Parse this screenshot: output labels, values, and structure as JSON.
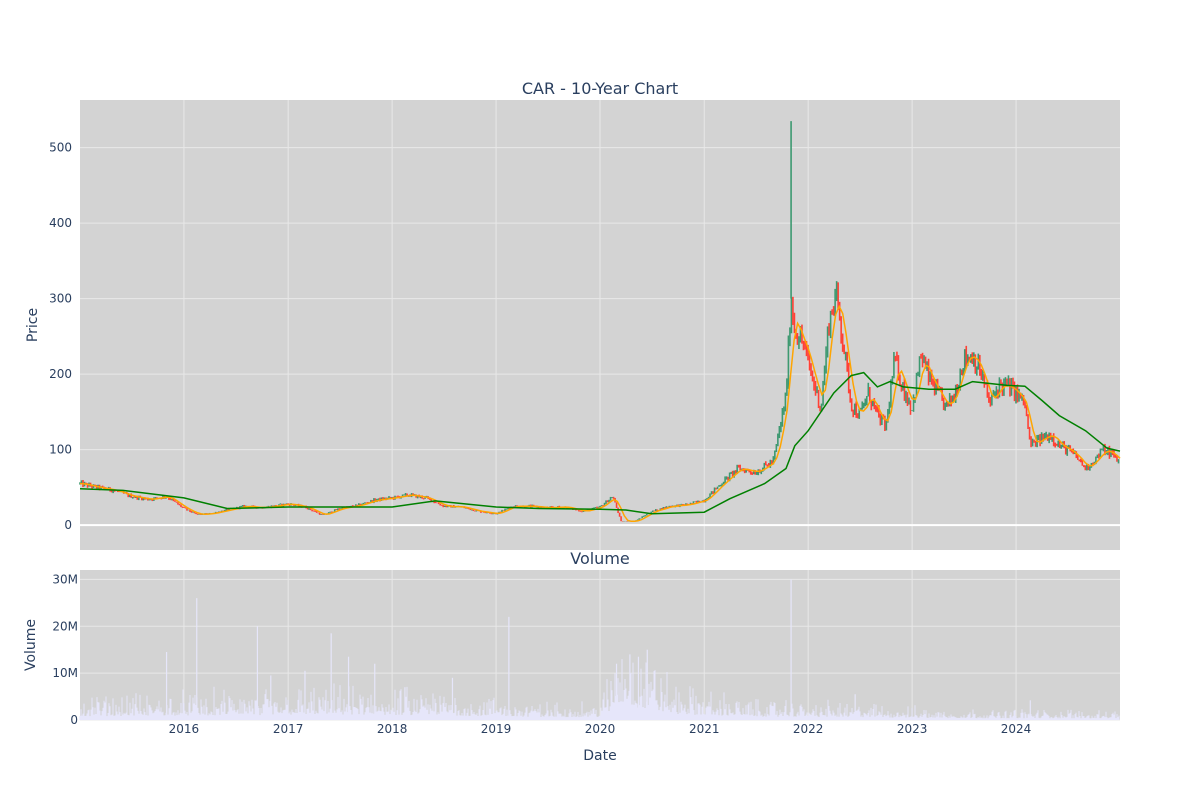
{
  "chart_data": [
    {
      "type": "candlestick",
      "title": "CAR - 10-Year Chart",
      "xlabel": "",
      "ylabel": "Price",
      "x_range": [
        "2015-01-01",
        "2024-12-31"
      ],
      "ylim": [
        -33,
        563
      ],
      "y_ticks": [
        0,
        100,
        200,
        300,
        400,
        500
      ],
      "x_ticks": [
        "2016-01-01",
        "2017-01-01",
        "2018-01-01",
        "2019-01-01",
        "2020-01-01",
        "2021-01-01",
        "2022-01-01",
        "2023-01-01",
        "2024-01-01"
      ],
      "x_tick_labels": [
        "2016",
        "2017",
        "2018",
        "2019",
        "2020",
        "2021",
        "2022",
        "2023",
        "2024"
      ],
      "grid": true,
      "background": "#d3d3d3",
      "increasing_color": "#3d9970",
      "decreasing_color": "#ff4136",
      "close_approx": [
        [
          "2015-01-01",
          55
        ],
        [
          "2015-03-01",
          50
        ],
        [
          "2015-05-01",
          46
        ],
        [
          "2015-07-01",
          38
        ],
        [
          "2015-09-01",
          34
        ],
        [
          "2015-11-01",
          38
        ],
        [
          "2016-01-01",
          22
        ],
        [
          "2016-02-15",
          14
        ],
        [
          "2016-04-01",
          15
        ],
        [
          "2016-06-01",
          20
        ],
        [
          "2016-08-01",
          25
        ],
        [
          "2016-10-01",
          23
        ],
        [
          "2017-01-01",
          28
        ],
        [
          "2017-03-01",
          24
        ],
        [
          "2017-05-01",
          13
        ],
        [
          "2017-07-01",
          22
        ],
        [
          "2017-09-01",
          26
        ],
        [
          "2017-11-01",
          33
        ],
        [
          "2018-01-01",
          36
        ],
        [
          "2018-03-01",
          40
        ],
        [
          "2018-05-01",
          36
        ],
        [
          "2018-07-01",
          25
        ],
        [
          "2018-09-01",
          24
        ],
        [
          "2018-11-01",
          18
        ],
        [
          "2019-01-01",
          15
        ],
        [
          "2019-03-01",
          25
        ],
        [
          "2019-05-01",
          25
        ],
        [
          "2019-07-01",
          23
        ],
        [
          "2019-09-01",
          24
        ],
        [
          "2019-11-01",
          18
        ],
        [
          "2020-01-01",
          24
        ],
        [
          "2020-02-15",
          38
        ],
        [
          "2020-03-15",
          5
        ],
        [
          "2020-05-01",
          5
        ],
        [
          "2020-07-01",
          18
        ],
        [
          "2020-09-01",
          25
        ],
        [
          "2020-11-01",
          27
        ],
        [
          "2021-01-01",
          33
        ],
        [
          "2021-03-01",
          55
        ],
        [
          "2021-05-01",
          75
        ],
        [
          "2021-07-01",
          70
        ],
        [
          "2021-09-01",
          85
        ],
        [
          "2021-10-15",
          170
        ],
        [
          "2021-11-02",
          300
        ],
        [
          "2021-11-15",
          260
        ],
        [
          "2021-12-15",
          240
        ],
        [
          "2022-01-15",
          195
        ],
        [
          "2022-02-15",
          155
        ],
        [
          "2022-03-15",
          270
        ],
        [
          "2022-04-10",
          305
        ],
        [
          "2022-05-01",
          250
        ],
        [
          "2022-06-01",
          160
        ],
        [
          "2022-07-01",
          145
        ],
        [
          "2022-08-01",
          175
        ],
        [
          "2022-09-01",
          145
        ],
        [
          "2022-10-01",
          130
        ],
        [
          "2022-11-01",
          220
        ],
        [
          "2022-12-01",
          180
        ],
        [
          "2023-01-01",
          155
        ],
        [
          "2023-02-01",
          225
        ],
        [
          "2023-03-01",
          195
        ],
        [
          "2023-04-01",
          175
        ],
        [
          "2023-05-01",
          155
        ],
        [
          "2023-06-01",
          175
        ],
        [
          "2023-07-01",
          220
        ],
        [
          "2023-08-01",
          225
        ],
        [
          "2023-09-01",
          200
        ],
        [
          "2023-10-01",
          160
        ],
        [
          "2023-11-01",
          185
        ],
        [
          "2023-12-01",
          185
        ],
        [
          "2024-01-01",
          175
        ],
        [
          "2024-02-01",
          160
        ],
        [
          "2024-02-20",
          105
        ],
        [
          "2024-04-01",
          115
        ],
        [
          "2024-05-01",
          120
        ],
        [
          "2024-06-01",
          105
        ],
        [
          "2024-07-01",
          100
        ],
        [
          "2024-08-01",
          90
        ],
        [
          "2024-09-01",
          75
        ],
        [
          "2024-10-01",
          85
        ],
        [
          "2024-11-01",
          100
        ],
        [
          "2024-12-01",
          95
        ],
        [
          "2024-12-31",
          82
        ]
      ],
      "spike": {
        "date": "2021-11-02",
        "high": 535
      },
      "ma_short_color": "#ffa500",
      "ma_long_color": "#008000",
      "ma_long": [
        [
          "2015-01-01",
          48
        ],
        [
          "2015-06-01",
          46
        ],
        [
          "2016-01-01",
          36
        ],
        [
          "2016-06-01",
          22
        ],
        [
          "2017-01-01",
          24
        ],
        [
          "2017-06-01",
          24
        ],
        [
          "2018-01-01",
          24
        ],
        [
          "2018-06-01",
          32
        ],
        [
          "2019-01-01",
          24
        ],
        [
          "2019-06-01",
          22
        ],
        [
          "2020-01-01",
          21
        ],
        [
          "2020-04-01",
          20
        ],
        [
          "2020-07-01",
          15
        ],
        [
          "2021-01-01",
          17
        ],
        [
          "2021-04-01",
          35
        ],
        [
          "2021-08-01",
          55
        ],
        [
          "2021-10-15",
          75
        ],
        [
          "2021-11-15",
          105
        ],
        [
          "2022-01-01",
          125
        ],
        [
          "2022-04-01",
          175
        ],
        [
          "2022-06-01",
          198
        ],
        [
          "2022-07-15",
          202
        ],
        [
          "2022-09-01",
          183
        ],
        [
          "2022-10-15",
          190
        ],
        [
          "2022-12-01",
          183
        ],
        [
          "2023-03-01",
          180
        ],
        [
          "2023-06-01",
          180
        ],
        [
          "2023-08-01",
          190
        ],
        [
          "2023-12-01",
          185
        ],
        [
          "2024-02-01",
          184
        ],
        [
          "2024-04-01",
          165
        ],
        [
          "2024-06-01",
          145
        ],
        [
          "2024-09-01",
          125
        ],
        [
          "2024-11-15",
          102
        ],
        [
          "2024-12-31",
          98
        ]
      ]
    },
    {
      "type": "bar",
      "title": "Volume",
      "xlabel": "Date",
      "ylabel": "Volume",
      "ylim": [
        0,
        32000000
      ],
      "y_ticks": [
        0,
        10000000,
        20000000,
        30000000
      ],
      "y_tick_labels": [
        "0",
        "10M",
        "20M",
        "30M"
      ],
      "bar_color": "#e6e6fa",
      "baseline_approx": [
        [
          "2015-01-01",
          2000000
        ],
        [
          "2016-06-01",
          2500000
        ],
        [
          "2017-06-01",
          2800000
        ],
        [
          "2018-06-01",
          2500000
        ],
        [
          "2019-06-01",
          1500000
        ],
        [
          "2020-01-01",
          1500000
        ],
        [
          "2020-03-15",
          8000000
        ],
        [
          "2020-06-01",
          6000000
        ],
        [
          "2020-10-01",
          3000000
        ],
        [
          "2021-06-01",
          1800000
        ],
        [
          "2022-06-01",
          1500000
        ],
        [
          "2023-06-01",
          900000
        ],
        [
          "2024-12-31",
          900000
        ]
      ],
      "spikes": [
        [
          "2015-11-01",
          14500000
        ],
        [
          "2016-02-15",
          26000000
        ],
        [
          "2016-09-15",
          20000000
        ],
        [
          "2016-11-01",
          9500000
        ],
        [
          "2017-03-01",
          10500000
        ],
        [
          "2017-06-01",
          18500000
        ],
        [
          "2017-08-01",
          13500000
        ],
        [
          "2017-11-01",
          12000000
        ],
        [
          "2018-02-15",
          7000000
        ],
        [
          "2018-08-01",
          9000000
        ],
        [
          "2019-02-15",
          22000000
        ],
        [
          "2020-02-28",
          12000000
        ],
        [
          "2020-04-15",
          14000000
        ],
        [
          "2020-05-15",
          13500000
        ],
        [
          "2020-06-15",
          15000000
        ],
        [
          "2021-11-02",
          30000000
        ],
        [
          "2022-06-15",
          5500000
        ],
        [
          "2024-02-20",
          4200000
        ]
      ]
    }
  ]
}
